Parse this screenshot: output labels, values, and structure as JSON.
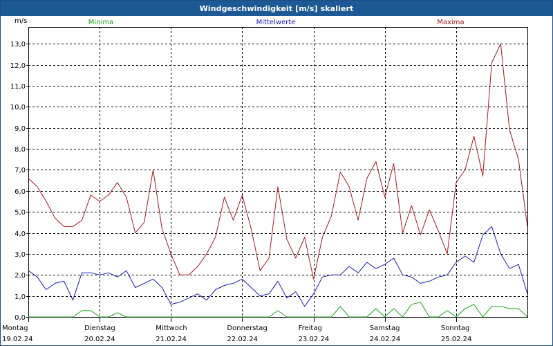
{
  "window": {
    "title": "Windgeschwindigkeit [m/s] skaliert"
  },
  "colors": {
    "titlebar": "#1d5a95",
    "minima": "#1aa01a",
    "mittelwerte": "#1a1ab4",
    "maxima": "#a01a1a",
    "grid": "#000000"
  },
  "legend": {
    "minima": "Minima",
    "mittelwerte": "Mittelwerte",
    "maxima": "Maxima"
  },
  "chart_data": {
    "type": "line",
    "title": "Windgeschwindigkeit [m/s] skaliert",
    "ylabel": "m/s",
    "xlabel": "",
    "ylim": [
      0,
      13.8
    ],
    "yticks": [
      0.0,
      1.0,
      2.0,
      3.0,
      4.0,
      5.0,
      6.0,
      7.0,
      8.0,
      9.0,
      10.0,
      11.0,
      12.0,
      13.0
    ],
    "ytick_labels": [
      "0,0",
      "1,0",
      "2,0",
      "3,0",
      "4,0",
      "5,0",
      "6,0",
      "7,0",
      "8,0",
      "9,0",
      "10,0",
      "11,0",
      "12,0",
      "13,0"
    ],
    "x_unit": "hours from 19.02.24 00:00",
    "x_range": [
      0,
      168
    ],
    "days": [
      {
        "name": "Montag",
        "date": "19.02.24"
      },
      {
        "name": "Dienstag",
        "date": "20.02.24"
      },
      {
        "name": "Mittwoch",
        "date": "21.02.24"
      },
      {
        "name": "Donnerstag",
        "date": "22.02.24"
      },
      {
        "name": "Freitag",
        "date": "23.02.24"
      },
      {
        "name": "Samstag",
        "date": "24.02.24"
      },
      {
        "name": "Sonntag",
        "date": "25.02.24"
      }
    ],
    "grid": true,
    "series": [
      {
        "name": "Maxima",
        "key": "maxima",
        "x_step_hours": 3,
        "values": [
          6.6,
          6.2,
          5.5,
          4.7,
          4.3,
          4.3,
          4.6,
          5.8,
          5.5,
          5.8,
          6.4,
          5.7,
          4.0,
          4.5,
          7.0,
          4.2,
          3.0,
          2.0,
          2.0,
          2.4,
          3.0,
          3.8,
          5.7,
          4.6,
          5.8,
          4.2,
          2.2,
          2.8,
          6.2,
          3.7,
          2.8,
          3.8,
          1.8,
          3.8,
          4.8,
          6.9,
          6.2,
          4.6,
          6.6,
          7.4,
          5.7,
          7.3,
          4.0,
          5.3,
          3.9,
          5.1,
          4.1,
          3.0,
          6.4,
          7.0,
          8.6,
          6.7,
          12.1,
          13.0,
          8.9,
          7.5,
          4.3
        ]
      },
      {
        "name": "Mittelwerte",
        "key": "mittelwerte",
        "x_step_hours": 3,
        "values": [
          2.2,
          1.9,
          1.3,
          1.6,
          1.7,
          0.8,
          2.1,
          2.1,
          2.0,
          2.1,
          1.9,
          2.2,
          1.4,
          1.6,
          1.8,
          1.4,
          0.6,
          0.7,
          0.9,
          1.1,
          0.8,
          1.3,
          1.5,
          1.6,
          1.8,
          1.4,
          1.0,
          1.1,
          1.7,
          0.9,
          1.2,
          0.5,
          1.1,
          1.9,
          2.0,
          2.0,
          2.4,
          2.1,
          2.6,
          2.3,
          2.5,
          2.8,
          2.0,
          1.9,
          1.6,
          1.7,
          1.9,
          2.0,
          2.6,
          2.9,
          2.6,
          3.9,
          4.3,
          3.0,
          2.3,
          2.5,
          1.1
        ]
      },
      {
        "name": "Minima",
        "key": "minima",
        "x_step_hours": 3,
        "values": [
          0.0,
          0.0,
          0.0,
          0.0,
          0.0,
          0.0,
          0.3,
          0.3,
          0.0,
          0.0,
          0.2,
          0.0,
          0.0,
          0.0,
          0.0,
          0.0,
          0.0,
          0.0,
          0.0,
          0.0,
          0.0,
          0.0,
          0.0,
          0.0,
          0.0,
          0.0,
          0.0,
          0.0,
          0.3,
          0.0,
          0.0,
          0.0,
          0.0,
          0.0,
          0.0,
          0.5,
          0.0,
          0.0,
          0.0,
          0.4,
          0.0,
          0.4,
          0.0,
          0.6,
          0.7,
          0.0,
          0.0,
          0.3,
          0.0,
          0.4,
          0.6,
          0.0,
          0.5,
          0.5,
          0.4,
          0.4,
          0.0
        ]
      }
    ]
  }
}
